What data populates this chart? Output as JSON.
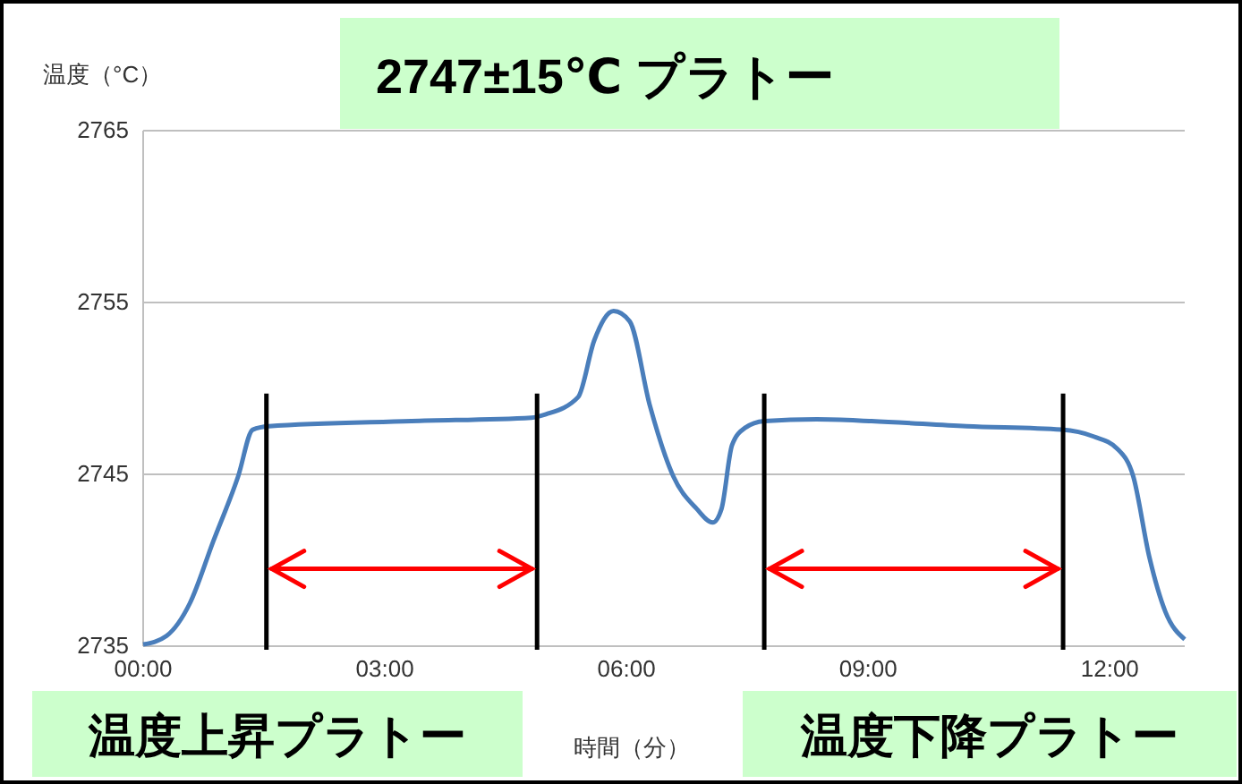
{
  "chart_data": {
    "type": "line",
    "title": "2747±15℃ プラトー",
    "xlabel": "時間（分）",
    "ylabel": "温度（°C）",
    "annotations": [
      "温度上昇プラトー",
      "温度下降プラトー"
    ],
    "x": [
      0,
      0.29,
      0.58,
      0.87,
      1.18,
      1.36,
      1.56,
      3.33,
      4.82,
      5.0,
      5.4,
      5.6,
      5.84,
      6.04,
      6.29,
      6.58,
      6.87,
      7.07,
      7.18,
      7.31,
      7.47,
      7.71,
      8.36,
      9.04,
      10.22,
      11.4,
      11.8,
      12.09,
      12.29,
      12.49,
      12.69,
      12.93
    ],
    "series": [
      {
        "color": "#4a7ebb",
        "values": [
          2735.1,
          2735.6,
          2737.5,
          2741.1,
          2744.9,
          2747.6,
          2747.8,
          2748.1,
          2748.3,
          2748.5,
          2749.5,
          2752.8,
          2754.5,
          2753.9,
          2749.0,
          2744.9,
          2743.0,
          2742.2,
          2743.0,
          2746.7,
          2747.7,
          2748.1,
          2748.2,
          2748.1,
          2747.8,
          2747.6,
          2747.2,
          2746.5,
          2744.9,
          2740.2,
          2737.0,
          2735.4
        ]
      }
    ],
    "xlim": [
      0,
      12.93
    ],
    "xticks": [
      {
        "value": 0,
        "label": "00:00"
      },
      {
        "value": 3,
        "label": "03:00"
      },
      {
        "value": 6,
        "label": "06:00"
      },
      {
        "value": 9,
        "label": "09:00"
      },
      {
        "value": 12,
        "label": "12:00"
      }
    ],
    "ylim": [
      2735,
      2765
    ],
    "yticks": [
      2735,
      2745,
      2755,
      2765
    ],
    "grid": "y",
    "marker": "none",
    "line_style": "solid",
    "ref_lines": [
      {
        "axis": "x",
        "value": 1.53,
        "color": "#000000"
      },
      {
        "axis": "x",
        "value": 4.89,
        "color": "#000000"
      },
      {
        "axis": "x",
        "value": 7.71,
        "color": "#000000"
      },
      {
        "axis": "x",
        "value": 11.42,
        "color": "#000000"
      }
    ]
  }
}
